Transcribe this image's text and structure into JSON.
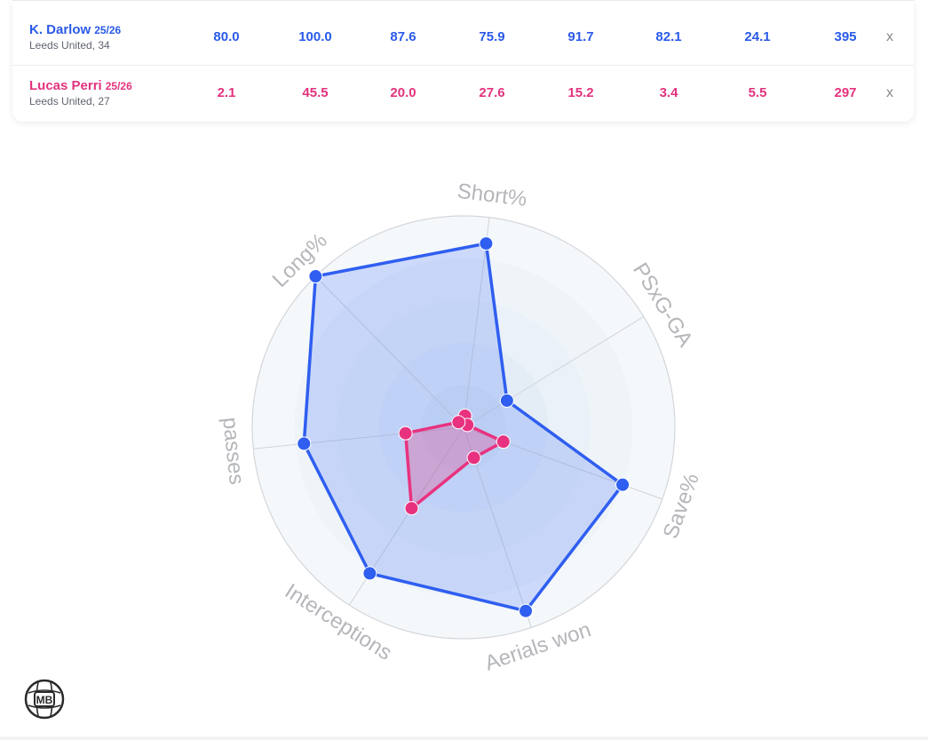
{
  "players": [
    {
      "name": "K. Darlow",
      "season": "25/26",
      "team": "Leeds United, 34",
      "values": [
        "80.0",
        "100.0",
        "87.6",
        "75.9",
        "91.7",
        "82.1",
        "24.1",
        "395"
      ],
      "remove_label": "x",
      "color": "#2f5ef0"
    },
    {
      "name": "Lucas Perri",
      "season": "25/26",
      "team": "Leeds United, 27",
      "values": [
        "2.1",
        "45.5",
        "20.0",
        "27.6",
        "15.2",
        "3.4",
        "5.5",
        "297"
      ],
      "remove_label": "x",
      "color": "#e8327f"
    }
  ],
  "chart_data": {
    "type": "radar",
    "axes": [
      "Short%",
      "PSxG-GA",
      "Save%",
      "Aerials won",
      "Interceptions",
      "passes",
      "Long%"
    ],
    "range": [
      0,
      100
    ],
    "grid": true,
    "series": [
      {
        "name": "K. Darlow",
        "color": "#2f5ef0",
        "values": [
          87.6,
          24.1,
          80.0,
          91.7,
          82.1,
          75.9,
          100.0
        ]
      },
      {
        "name": "Lucas Perri",
        "color": "#e8327f",
        "values": [
          5.5,
          2.1,
          20.0,
          15.2,
          45.5,
          27.6,
          3.4
        ]
      }
    ]
  },
  "logo_text": "MB"
}
